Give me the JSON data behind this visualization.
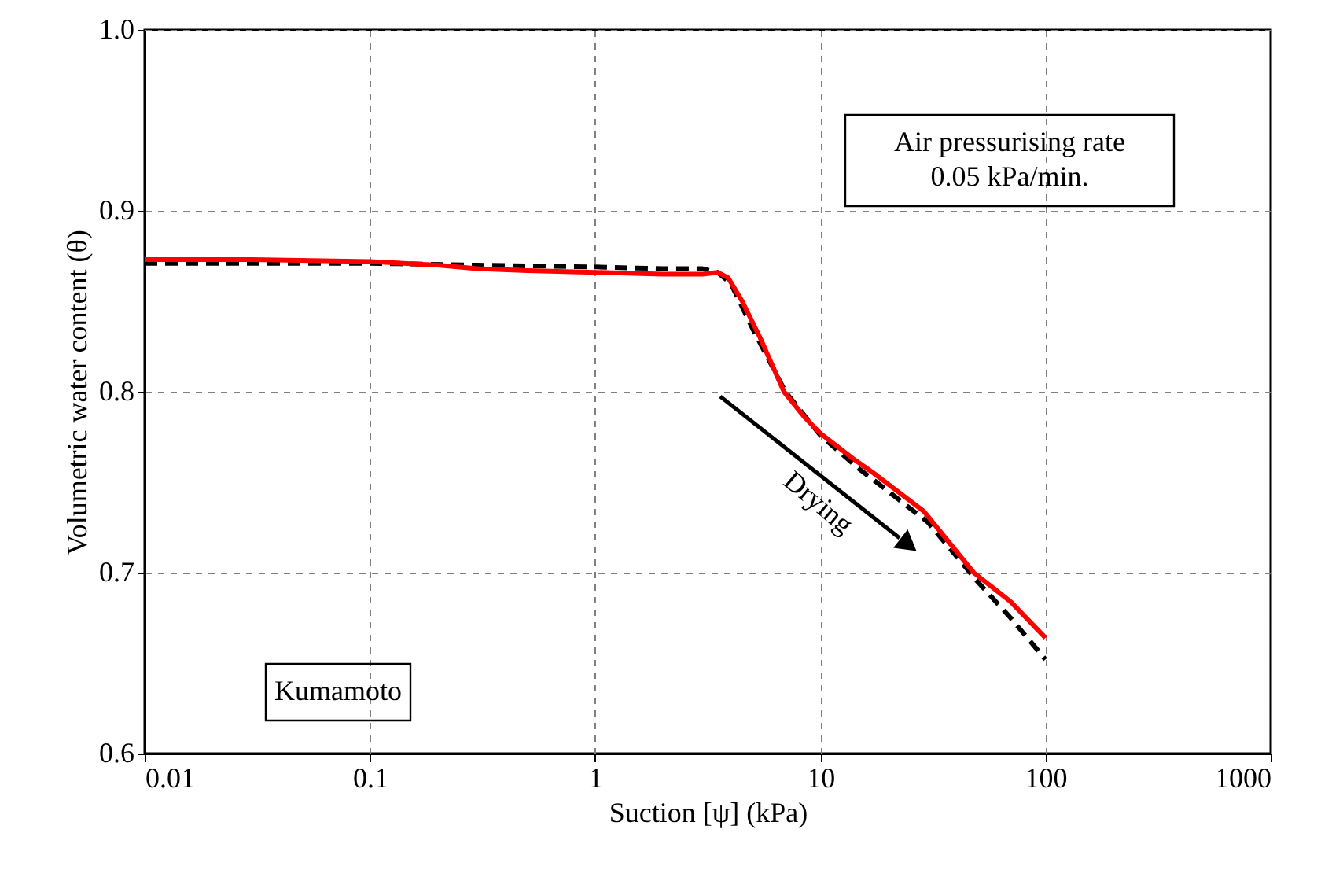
{
  "chart_data": {
    "type": "line",
    "xlabel": "Suction [ψ] (kPa)",
    "ylabel": "Volumetric  water content (θ)",
    "log": "x",
    "xlim": [
      0.01,
      1000
    ],
    "xticks": [
      0.01,
      0.1,
      1,
      10,
      100,
      1000
    ],
    "ylim": [
      0.6,
      1.0
    ],
    "yticks": [
      0.6,
      0.7,
      0.8,
      0.9,
      {
        "value": 1.0,
        "label": "1.0"
      }
    ],
    "grid": true,
    "line_style": "solid",
    "series": [
      {
        "color": "#000000",
        "line_style": "dashed",
        "x": [
          0.01,
          0.03,
          0.1,
          0.3,
          1,
          2,
          3,
          3.5,
          4,
          5,
          7,
          10,
          15,
          20,
          30,
          50,
          70,
          100
        ],
        "values": [
          0.871,
          0.871,
          0.871,
          0.87,
          0.869,
          0.868,
          0.868,
          0.866,
          0.86,
          0.835,
          0.8,
          0.776,
          0.757,
          0.745,
          0.728,
          0.695,
          0.675,
          0.652
        ]
      },
      {
        "color": "#ff0000",
        "x": [
          0.01,
          0.03,
          0.1,
          0.2,
          0.3,
          0.5,
          1,
          2,
          3,
          3.5,
          3.9,
          4.5,
          5.4,
          6.9,
          8.5,
          10,
          14,
          17.7,
          28.8,
          48,
          70,
          100
        ],
        "values": [
          0.873,
          0.873,
          0.872,
          0.87,
          0.868,
          0.867,
          0.866,
          0.865,
          0.865,
          0.866,
          0.863,
          0.85,
          0.83,
          0.8,
          0.786,
          0.777,
          0.763,
          0.754,
          0.734,
          0.7,
          0.684,
          0.664
        ]
      }
    ],
    "annotations": [
      "Air pressurising rate\n0.05 kPa/min.",
      "Kumamoto",
      "Drying"
    ]
  }
}
